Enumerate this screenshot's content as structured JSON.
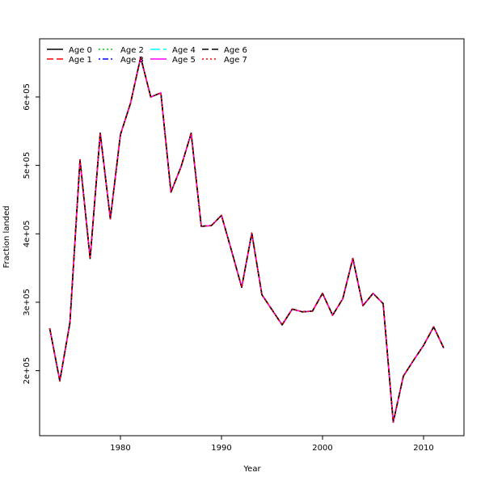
{
  "chart_data": {
    "type": "line",
    "title": "",
    "xlabel": "Year",
    "ylabel": "Fraction landed",
    "xlim": [
      1972,
      2014
    ],
    "ylim": [
      105000,
      685000
    ],
    "xticks": [
      1980,
      1990,
      2000,
      2010
    ],
    "xtick_labels": [
      "1980",
      "1990",
      "2000",
      "2010"
    ],
    "yticks": [
      200000,
      300000,
      400000,
      500000,
      600000
    ],
    "ytick_labels": [
      "2e+05",
      "3e+05",
      "4e+05",
      "5e+05",
      "6e+05"
    ],
    "legend_position": "top-left",
    "grid": false,
    "x": [
      1973,
      1974,
      1975,
      1976,
      1977,
      1978,
      1979,
      1980,
      1981,
      1982,
      1983,
      1984,
      1985,
      1986,
      1987,
      1988,
      1989,
      1990,
      1991,
      1992,
      1993,
      1994,
      1995,
      1996,
      1997,
      1998,
      1999,
      2000,
      2001,
      2002,
      2003,
      2004,
      2005,
      2006,
      2007,
      2008,
      2009,
      2010,
      2011,
      2012
    ],
    "series": [
      {
        "name": "Age 0",
        "color": "#000000",
        "dash": "solid",
        "values": [
          262000,
          185000,
          270000,
          508000,
          364000,
          547000,
          422000,
          545000,
          591000,
          658000,
          600000,
          606000,
          461000,
          498000,
          547000,
          411000,
          412000,
          427000,
          375000,
          322000,
          401000,
          311000,
          289000,
          267000,
          290000,
          286000,
          287000,
          313000,
          281000,
          305000,
          364000,
          295000,
          313000,
          298000,
          125000,
          192000,
          215000,
          237000,
          264000,
          233000
        ]
      },
      {
        "name": "Age 1",
        "color": "#ff0000",
        "dash": "dashed",
        "values": [
          262000,
          185000,
          270000,
          508000,
          364000,
          547000,
          422000,
          545000,
          591000,
          658000,
          600000,
          606000,
          461000,
          498000,
          547000,
          411000,
          412000,
          427000,
          375000,
          322000,
          401000,
          311000,
          289000,
          267000,
          290000,
          286000,
          287000,
          313000,
          281000,
          305000,
          364000,
          295000,
          313000,
          298000,
          125000,
          192000,
          215000,
          237000,
          264000,
          233000
        ]
      },
      {
        "name": "Age 2",
        "color": "#00cd00",
        "dash": "dotted",
        "values": [
          262000,
          185000,
          270000,
          508000,
          364000,
          547000,
          422000,
          545000,
          591000,
          658000,
          600000,
          606000,
          461000,
          498000,
          547000,
          411000,
          412000,
          427000,
          375000,
          322000,
          401000,
          311000,
          289000,
          267000,
          290000,
          286000,
          287000,
          313000,
          281000,
          305000,
          364000,
          295000,
          313000,
          298000,
          125000,
          192000,
          215000,
          237000,
          264000,
          233000
        ]
      },
      {
        "name": "Age 3",
        "color": "#0000ff",
        "dash": "dotdash",
        "values": [
          262000,
          185000,
          270000,
          508000,
          364000,
          547000,
          422000,
          545000,
          591000,
          658000,
          600000,
          606000,
          461000,
          498000,
          547000,
          411000,
          412000,
          427000,
          375000,
          322000,
          401000,
          311000,
          289000,
          267000,
          290000,
          286000,
          287000,
          313000,
          281000,
          305000,
          364000,
          295000,
          313000,
          298000,
          125000,
          192000,
          215000,
          237000,
          264000,
          233000
        ]
      },
      {
        "name": "Age 4",
        "color": "#00ffff",
        "dash": "longdash",
        "values": [
          262000,
          185000,
          270000,
          508000,
          364000,
          547000,
          422000,
          545000,
          591000,
          658000,
          600000,
          606000,
          461000,
          498000,
          547000,
          411000,
          412000,
          427000,
          375000,
          322000,
          401000,
          311000,
          289000,
          267000,
          290000,
          286000,
          287000,
          313000,
          281000,
          305000,
          364000,
          295000,
          313000,
          298000,
          125000,
          192000,
          215000,
          237000,
          264000,
          233000
        ]
      },
      {
        "name": "Age 5",
        "color": "#ff00ff",
        "dash": "solid",
        "values": [
          262000,
          185000,
          270000,
          508000,
          364000,
          547000,
          422000,
          545000,
          591000,
          658000,
          600000,
          606000,
          461000,
          498000,
          547000,
          411000,
          412000,
          427000,
          375000,
          322000,
          401000,
          311000,
          289000,
          267000,
          290000,
          286000,
          287000,
          313000,
          281000,
          305000,
          364000,
          295000,
          313000,
          298000,
          125000,
          192000,
          215000,
          237000,
          264000,
          233000
        ]
      },
      {
        "name": "Age 6",
        "color": "#000000",
        "dash": "dashed",
        "values": [
          262000,
          185000,
          270000,
          508000,
          364000,
          547000,
          422000,
          545000,
          591000,
          658000,
          600000,
          606000,
          461000,
          498000,
          547000,
          411000,
          412000,
          427000,
          375000,
          322000,
          401000,
          311000,
          289000,
          267000,
          290000,
          286000,
          287000,
          313000,
          281000,
          305000,
          364000,
          295000,
          313000,
          298000,
          125000,
          192000,
          215000,
          237000,
          264000,
          233000
        ]
      },
      {
        "name": "Age 7",
        "color": "#ff0000",
        "dash": "dotted",
        "values": [
          262000,
          185000,
          270000,
          508000,
          364000,
          547000,
          422000,
          545000,
          591000,
          658000,
          600000,
          606000,
          461000,
          498000,
          547000,
          411000,
          412000,
          427000,
          375000,
          322000,
          401000,
          311000,
          289000,
          267000,
          290000,
          286000,
          287000,
          313000,
          281000,
          305000,
          364000,
          295000,
          313000,
          298000,
          125000,
          192000,
          215000,
          237000,
          264000,
          233000
        ]
      }
    ]
  }
}
